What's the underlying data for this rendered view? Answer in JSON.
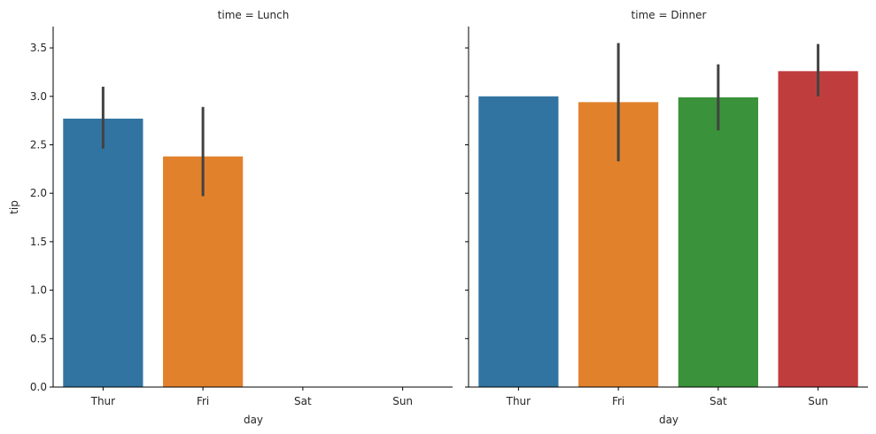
{
  "chart_data": {
    "type": "bar",
    "categories": [
      "Thur",
      "Fri",
      "Sat",
      "Sun"
    ],
    "xlabel": "day",
    "ylabel": "tip",
    "ylim": [
      0,
      3.72
    ],
    "yticks": [
      "0.0",
      "0.5",
      "1.0",
      "1.5",
      "2.0",
      "2.5",
      "3.0",
      "3.5"
    ],
    "grid": false,
    "colors": {
      "Thur": "#3274a1",
      "Fri": "#e1812c",
      "Sat": "#3a923a",
      "Sun": "#c03d3e"
    },
    "panels": [
      {
        "title": "time = Lunch",
        "values": [
          2.77,
          2.38,
          null,
          null
        ],
        "ci": [
          [
            2.46,
            3.1
          ],
          [
            1.97,
            2.89
          ],
          null,
          null
        ]
      },
      {
        "title": "time = Dinner",
        "values": [
          3.0,
          2.94,
          2.99,
          3.26
        ],
        "ci": [
          null,
          [
            2.33,
            3.55
          ],
          [
            2.65,
            3.33
          ],
          [
            3.0,
            3.54
          ]
        ]
      }
    ]
  }
}
